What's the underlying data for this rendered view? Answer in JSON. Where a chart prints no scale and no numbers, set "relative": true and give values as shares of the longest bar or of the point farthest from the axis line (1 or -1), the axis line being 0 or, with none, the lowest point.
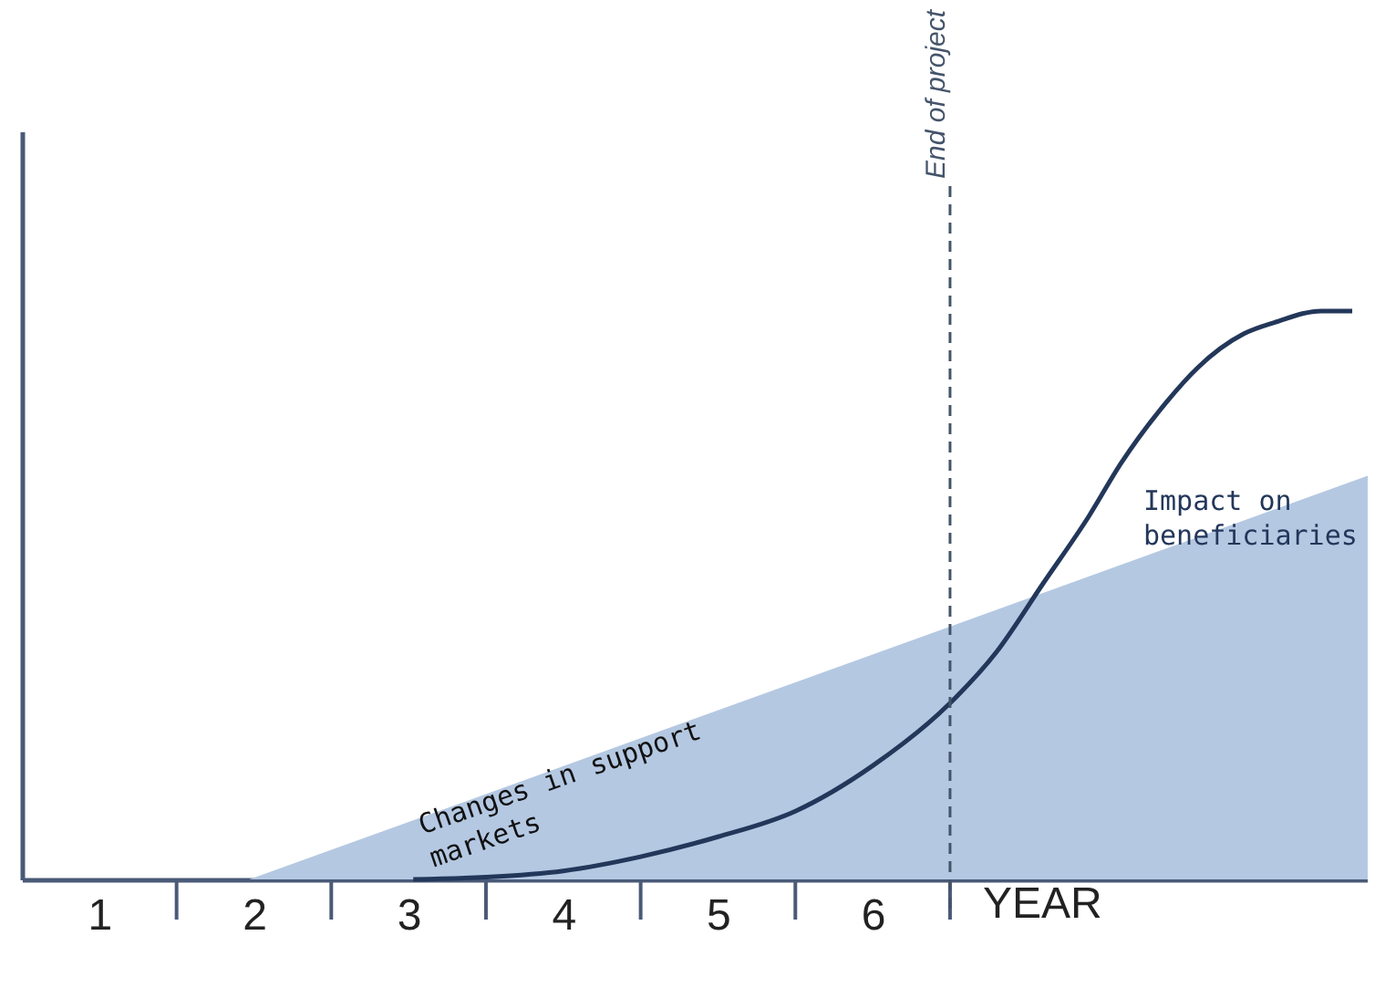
{
  "chart_data": {
    "type": "area",
    "relative": true,
    "xlabel": "YEAR",
    "xlim": [
      0,
      8.7
    ],
    "xticks": [
      {
        "value": 0.5,
        "label": "1"
      },
      {
        "value": 1.5,
        "label": "2"
      },
      {
        "value": 2.5,
        "label": "3"
      },
      {
        "value": 3.5,
        "label": "4"
      },
      {
        "value": 4.5,
        "label": "5"
      },
      {
        "value": 5.5,
        "label": "6"
      }
    ],
    "series": [
      {
        "name": "Changes in support markets",
        "color": "#b4c8e2",
        "x": [
          0,
          1.47,
          8.7
        ],
        "values": [
          0,
          0,
          0.71
        ]
      },
      {
        "name": "Impact on beneficiaries",
        "type": "line",
        "color": "#23375a",
        "x": [
          2.53,
          3,
          3.5,
          4,
          4.5,
          5,
          5.5,
          6,
          6.3,
          6.6,
          6.9,
          7.1,
          7.4,
          7.6,
          7.9,
          8.1,
          8.4,
          8.6
        ],
        "values": [
          0,
          0.004,
          0.015,
          0.04,
          0.075,
          0.12,
          0.2,
          0.31,
          0.4,
          0.52,
          0.64,
          0.73,
          0.84,
          0.9,
          0.96,
          0.98,
          1.0,
          1.0
        ]
      }
    ],
    "ref_lines": [
      {
        "axis": "x",
        "value": 6,
        "label": "End of project",
        "color": "#44546a",
        "line_style": "dashed"
      }
    ],
    "grid": false
  }
}
